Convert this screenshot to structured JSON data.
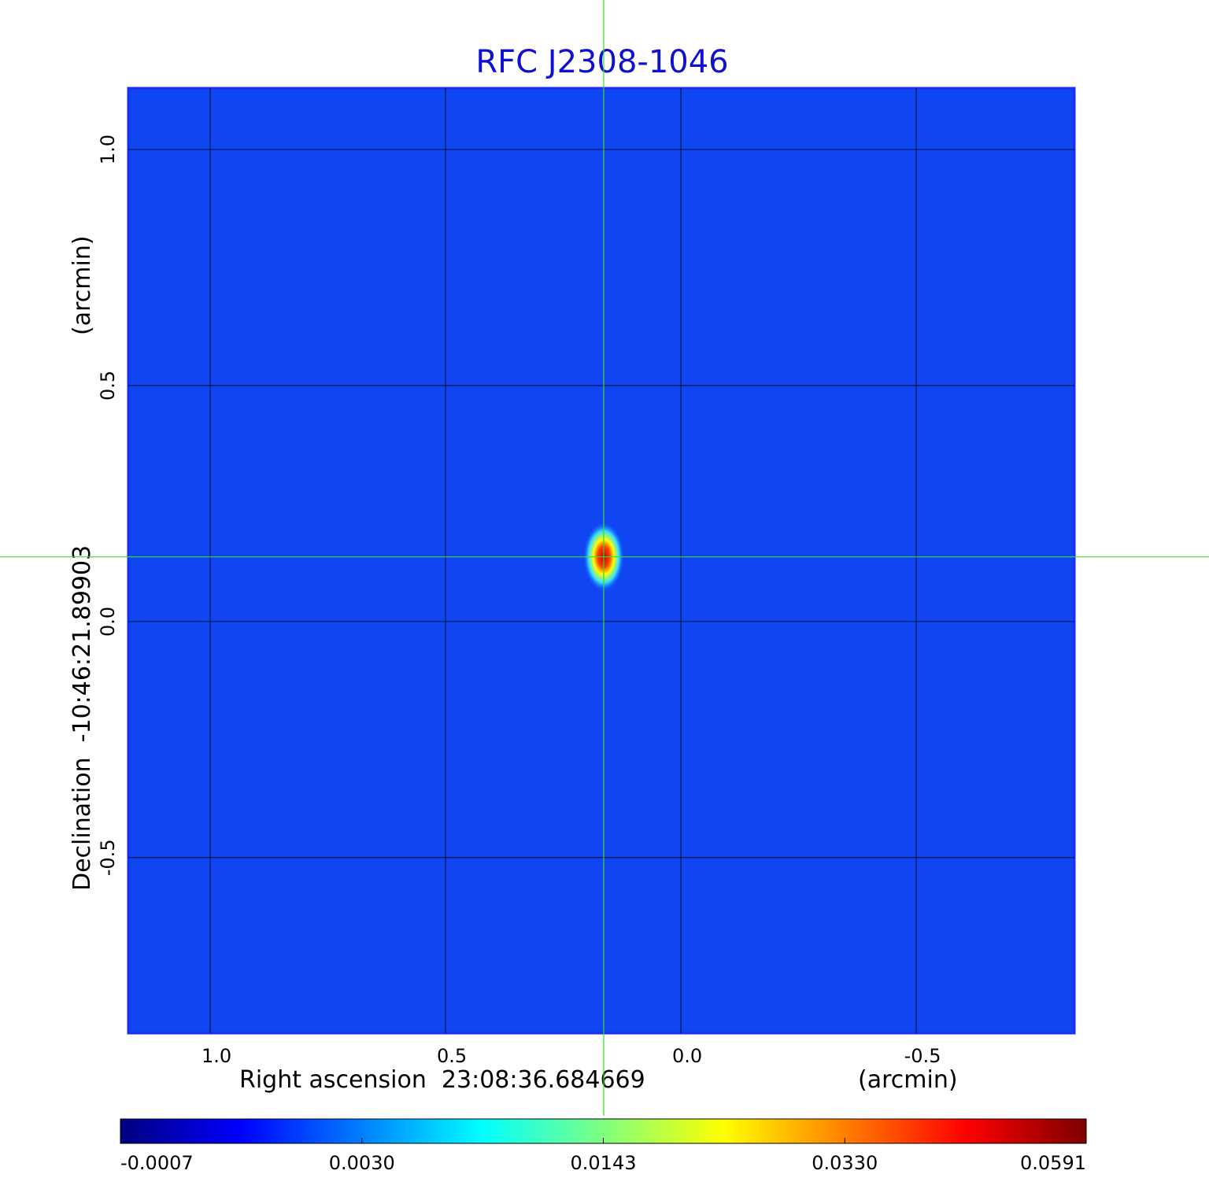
{
  "chart_data": {
    "type": "image",
    "title": "RFC J2308-1046",
    "xlabel": "Right ascension  23:08:36.684669",
    "xunit": "(arcmin)",
    "ylabel": "Declination  -10:46:21.89903",
    "yunit": "(arcmin)",
    "xlim": [
      1.174,
      -0.836
    ],
    "ylim": [
      -0.872,
      1.13
    ],
    "xticks": [
      {
        "value": 1,
        "label": "1.0"
      },
      0.5,
      {
        "value": 0,
        "label": "0.0"
      },
      -0.5
    ],
    "yticks": [
      {
        "value": 1,
        "label": "1.0"
      },
      0.5,
      {
        "value": 0,
        "label": "0.0"
      },
      -0.5
    ],
    "grid": true,
    "marker": {
      "x": 0.164,
      "y": 0.137
    },
    "colormap": [
      "#00007f",
      "#0000ff",
      "#00ffff",
      "#ffff00",
      "#ff0000",
      "#7f0000"
    ],
    "colorbar": {
      "lim": [
        -0.0007,
        0.0591
      ],
      "ticks": [
        -0.0007,
        {
          "value": 0.003,
          "label": "0.0030"
        },
        0.0143,
        {
          "value": 0.033,
          "label": "0.0330"
        },
        0.0591
      ]
    }
  }
}
